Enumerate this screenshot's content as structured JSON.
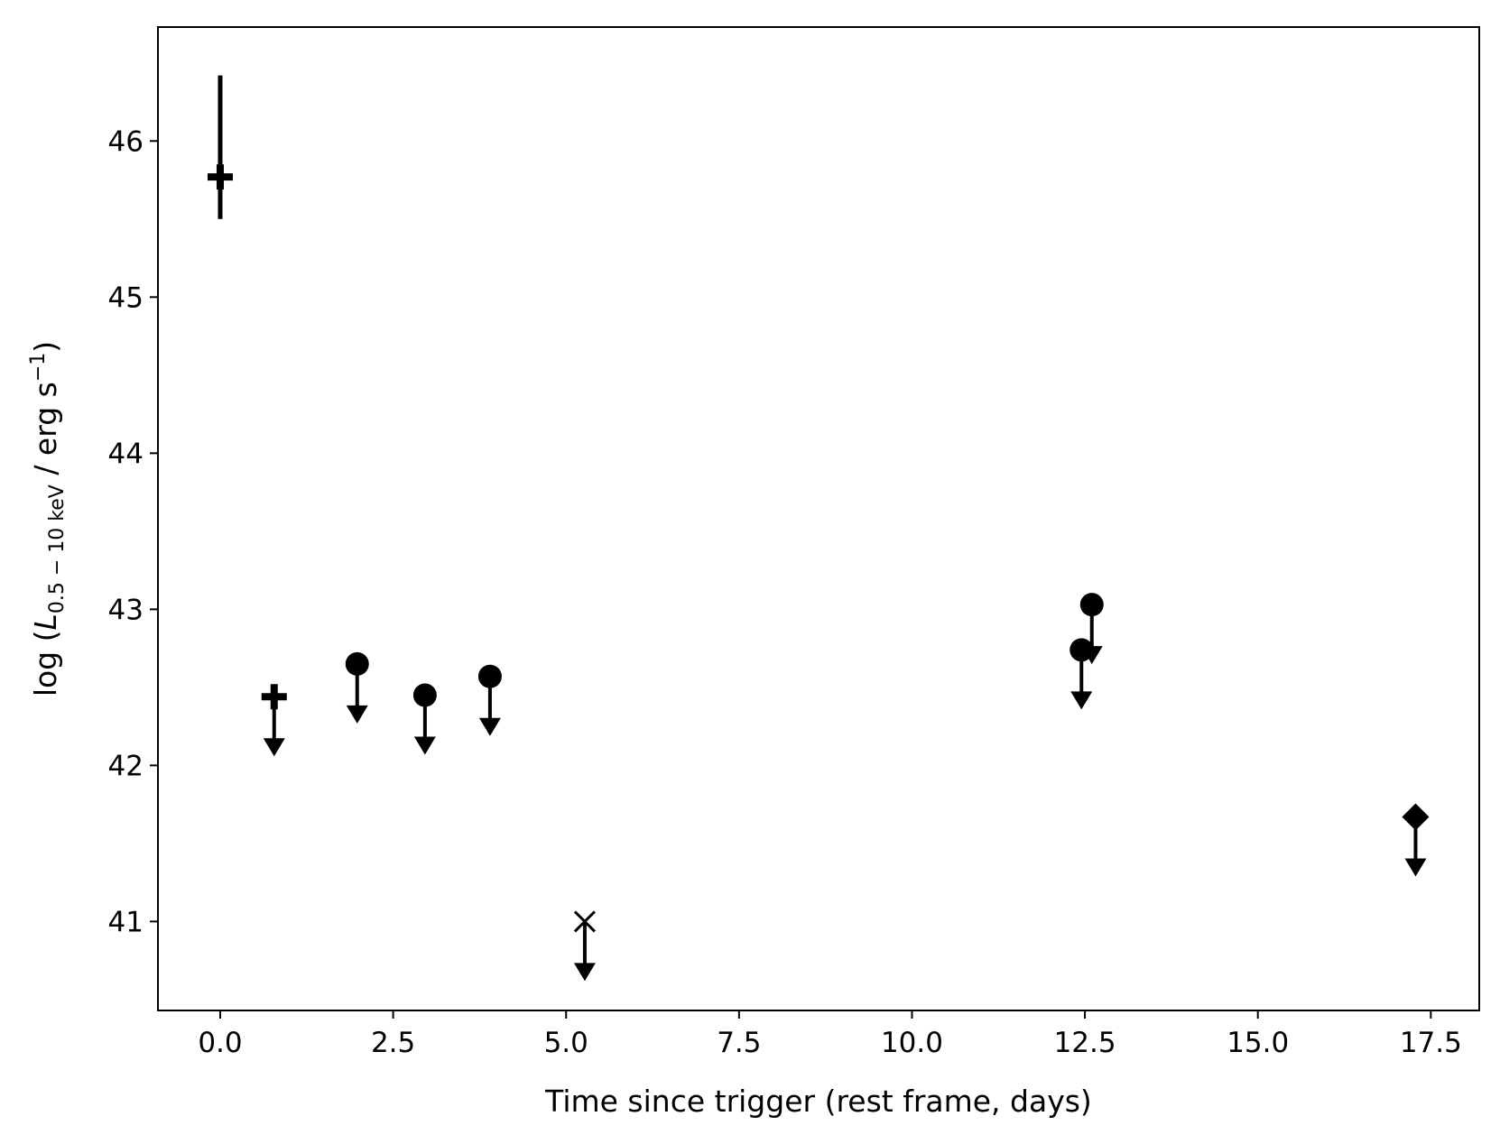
{
  "chart_data": {
    "type": "scatter",
    "title": "",
    "xlabel": "Time since trigger (rest frame, days)",
    "ylabel": {
      "prefix": "log (",
      "symbol": "L",
      "subscript": "0.5 − 10 keV",
      "middle": " / erg s",
      "superscript": "−1",
      "suffix": ")"
    },
    "xlim": [
      -0.9,
      18.2
    ],
    "ylim": [
      40.43,
      46.73
    ],
    "xticks": [
      0.0,
      2.5,
      5.0,
      7.5,
      10.0,
      12.5,
      15.0,
      17.5
    ],
    "xtick_labels": [
      "0.0",
      "2.5",
      "5.0",
      "7.5",
      "10.0",
      "12.5",
      "15.0",
      "17.5"
    ],
    "yticks": [
      41,
      42,
      43,
      44,
      45,
      46
    ],
    "ytick_labels": [
      "41",
      "42",
      "43",
      "44",
      "45",
      "46"
    ],
    "grid": false,
    "legend": "none",
    "color": "#000000",
    "points": [
      {
        "x": 0.0,
        "y": 45.77,
        "marker": "plus",
        "yerr_low": 45.5,
        "yerr_high": 46.42,
        "upper_limit": false
      },
      {
        "x": 0.78,
        "y": 42.44,
        "marker": "plus",
        "upper_limit": true
      },
      {
        "x": 1.98,
        "y": 42.65,
        "marker": "circle",
        "upper_limit": true
      },
      {
        "x": 2.96,
        "y": 42.45,
        "marker": "circle",
        "upper_limit": true
      },
      {
        "x": 3.9,
        "y": 42.57,
        "marker": "circle",
        "upper_limit": true
      },
      {
        "x": 5.27,
        "y": 41.0,
        "marker": "x",
        "upper_limit": true
      },
      {
        "x": 12.45,
        "y": 42.74,
        "marker": "circle",
        "upper_limit": true
      },
      {
        "x": 12.6,
        "y": 43.03,
        "marker": "circle",
        "upper_limit": true
      },
      {
        "x": 17.28,
        "y": 41.67,
        "marker": "diamond",
        "upper_limit": true
      }
    ]
  }
}
